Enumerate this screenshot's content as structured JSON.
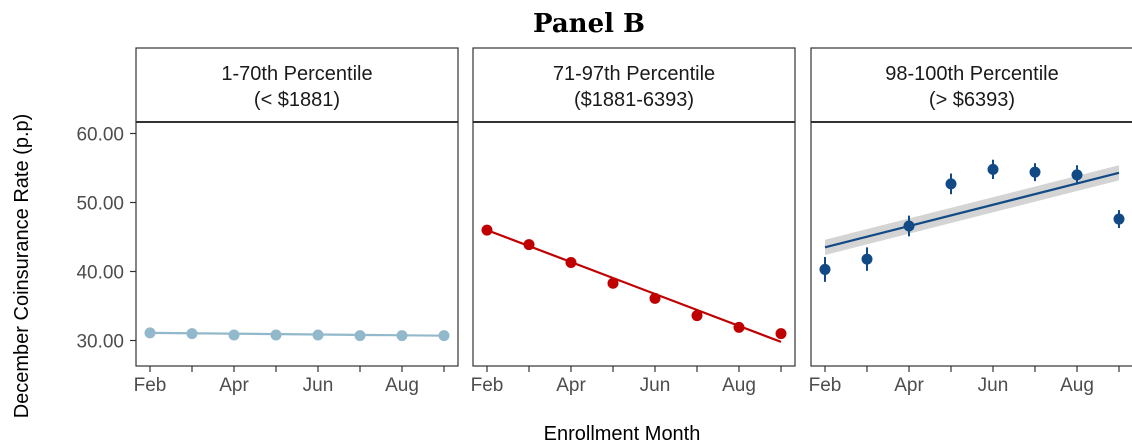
{
  "chart_data": {
    "type": "scatter",
    "title": "Panel B",
    "xlabel": "Enrollment Month",
    "ylabel": "December Coinsurance Rate (p.p)",
    "ylim": [
      28.5,
      61.8
    ],
    "yticks": [
      30,
      40,
      50,
      60
    ],
    "ytick_labels": [
      "30.00",
      "40.00",
      "50.00",
      "60.00"
    ],
    "xlim": [
      1.55,
      9.5
    ],
    "xticks": [
      2,
      4,
      6,
      8
    ],
    "xtick_labels": [
      "Feb",
      "Apr",
      "Jun",
      "Aug"
    ],
    "grid": false,
    "panels": [
      {
        "strip_line1": "1-70th Percentile",
        "strip_line2": "(< $1881)",
        "color": "#92b9cb",
        "band_color": "#d9d9d9",
        "show_errorbars": false,
        "show_band": false,
        "x": [
          2,
          3,
          4,
          5,
          6,
          7,
          8,
          9
        ],
        "y": [
          31.1,
          31.0,
          30.8,
          30.8,
          30.8,
          30.7,
          30.7,
          30.7
        ],
        "ci": [
          0.2,
          0.2,
          0.2,
          0.2,
          0.2,
          0.2,
          0.2,
          0.2
        ],
        "fit": {
          "x": [
            2,
            9
          ],
          "y": [
            31.1,
            30.7
          ],
          "band": 0.15
        }
      },
      {
        "strip_line1": "71-97th Percentile",
        "strip_line2": "($1881-6393)",
        "color": "#c00000",
        "band_color": "#d9d9d9",
        "show_errorbars": false,
        "show_band": false,
        "x": [
          2,
          3,
          4,
          5,
          6,
          7,
          8,
          9
        ],
        "y": [
          46.0,
          43.9,
          41.3,
          38.3,
          36.1,
          33.6,
          31.9,
          31.0
        ],
        "ci": [
          0.3,
          0.3,
          0.3,
          0.3,
          0.3,
          0.3,
          0.3,
          0.3
        ],
        "fit": {
          "x": [
            2,
            9
          ],
          "y": [
            46.0,
            29.8
          ],
          "band": 0.3
        }
      },
      {
        "strip_line1": "98-100th Percentile",
        "strip_line2": "(> $6393)",
        "color": "#124a85",
        "band_color": "#cfcfcf",
        "show_errorbars": true,
        "show_band": true,
        "x": [
          2,
          3,
          4,
          5,
          6,
          7,
          8,
          9
        ],
        "y": [
          40.3,
          41.8,
          46.6,
          52.7,
          54.8,
          54.4,
          54.0,
          47.6
        ],
        "ci": [
          1.8,
          1.7,
          1.5,
          1.5,
          1.4,
          1.3,
          1.4,
          1.3
        ],
        "fit": {
          "x": [
            2,
            9
          ],
          "y": [
            43.5,
            54.3
          ],
          "band": 1.1
        }
      }
    ]
  }
}
